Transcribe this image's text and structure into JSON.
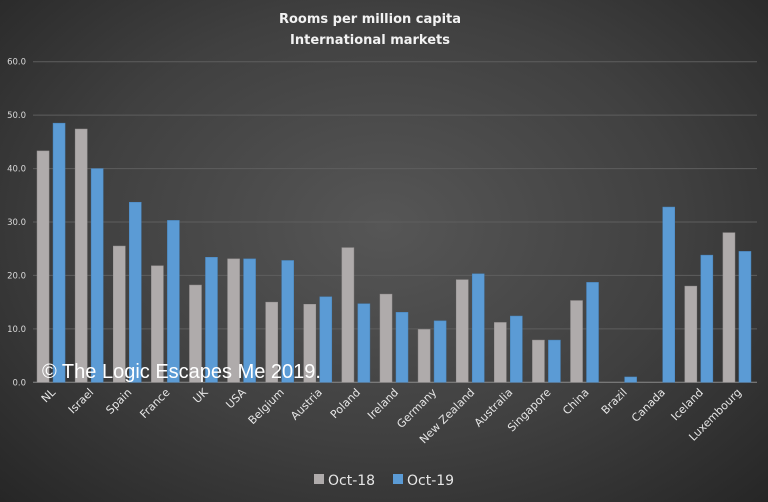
{
  "chart_data": {
    "type": "bar",
    "title": [
      "Rooms per million capita",
      "International markets"
    ],
    "xlabel": "",
    "ylabel": "",
    "ylim": [
      0,
      60
    ],
    "yticks": [
      "0.0",
      "10.0",
      "20.0",
      "30.0",
      "40.0",
      "50.0",
      "60.0"
    ],
    "grid": true,
    "legend": "bottom",
    "categories": [
      "NL",
      "Israel",
      "Spain",
      "France",
      "UK",
      "USA",
      "Belgium",
      "Austria",
      "Poland",
      "Ireland",
      "Germany",
      "New Zealand",
      "Australia",
      "Singapore",
      "China",
      "Brazil",
      "Canada",
      "Iceland",
      "Luxembourg"
    ],
    "series": [
      {
        "name": "Oct-18",
        "color": "#afabab",
        "values": [
          43.3,
          47.4,
          25.5,
          21.8,
          18.2,
          23.1,
          15.0,
          14.6,
          25.2,
          16.5,
          9.9,
          19.2,
          11.2,
          7.9,
          15.3,
          0,
          0,
          18.0,
          28.0
        ]
      },
      {
        "name": "Oct-19",
        "color": "#5b9bd5",
        "values": [
          48.5,
          40.0,
          33.7,
          30.3,
          23.4,
          23.1,
          22.8,
          16.0,
          14.7,
          13.1,
          11.5,
          20.3,
          12.4,
          7.9,
          18.7,
          1.0,
          32.8,
          23.8,
          24.5
        ]
      }
    ]
  },
  "watermark": "© The Logic Escapes Me 2019."
}
